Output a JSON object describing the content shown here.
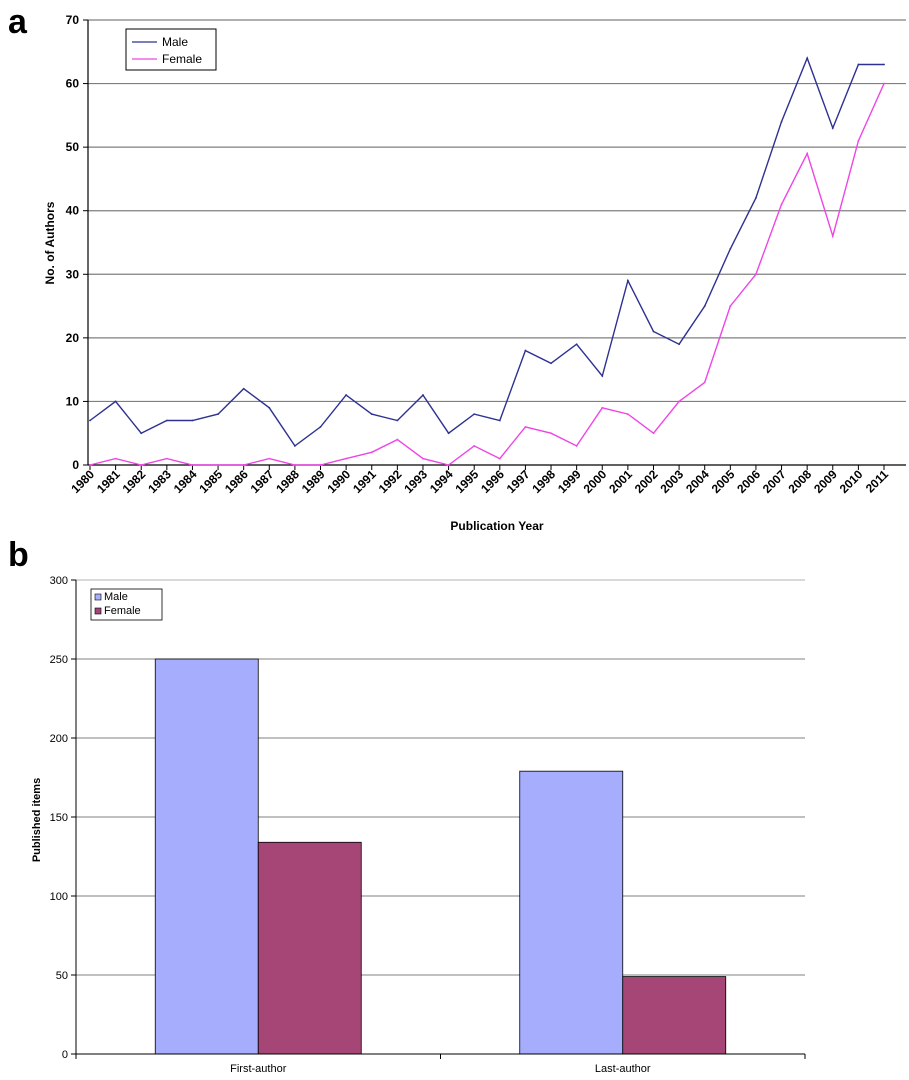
{
  "panels": {
    "a_label": "a",
    "b_label": "b"
  },
  "colors": {
    "male_line": "#2e3192",
    "female_line": "#ee46e6",
    "male_bar": "#a5adfc",
    "female_bar": "#a64676",
    "grid": "#7f7f7f",
    "grid_b": "#808080"
  },
  "chart_data": [
    {
      "id": "a",
      "type": "line",
      "xlabel": "Publication Year",
      "ylabel": "No. of Authors",
      "ylim": [
        0,
        70
      ],
      "yticks": [
        0,
        10,
        20,
        30,
        40,
        50,
        60,
        70
      ],
      "x": [
        "1980",
        "1981",
        "1982",
        "1983",
        "1984",
        "1985",
        "1986",
        "1987",
        "1988",
        "1989",
        "1990",
        "1991",
        "1992",
        "1993",
        "1994",
        "1995",
        "1996",
        "1997",
        "1998",
        "1999",
        "2000",
        "2001",
        "2002",
        "2003",
        "2004",
        "2005",
        "2006",
        "2007",
        "2008",
        "2009",
        "2010",
        "2011"
      ],
      "series": [
        {
          "name": "Male",
          "values": [
            7,
            10,
            5,
            7,
            7,
            8,
            12,
            9,
            3,
            6,
            11,
            8,
            7,
            11,
            5,
            8,
            7,
            18,
            16,
            19,
            14,
            29,
            21,
            19,
            25,
            34,
            42,
            54,
            64,
            53,
            63,
            63
          ]
        },
        {
          "name": "Female",
          "values": [
            0,
            1,
            0,
            1,
            0,
            0,
            0,
            1,
            0,
            0,
            1,
            2,
            4,
            1,
            0,
            3,
            1,
            6,
            5,
            3,
            9,
            8,
            5,
            10,
            13,
            25,
            30,
            41,
            49,
            36,
            51,
            60
          ]
        }
      ],
      "legend": "top-left",
      "grid": true
    },
    {
      "id": "b",
      "type": "bar",
      "ylabel": "Published items",
      "ylim": [
        0,
        300
      ],
      "yticks": [
        0,
        50,
        100,
        150,
        200,
        250,
        300
      ],
      "categories": [
        "First-author",
        "Last-author"
      ],
      "series": [
        {
          "name": "Male",
          "values": [
            250,
            179
          ]
        },
        {
          "name": "Female",
          "values": [
            134,
            49
          ]
        }
      ],
      "legend": "top-left",
      "grid": true
    }
  ]
}
